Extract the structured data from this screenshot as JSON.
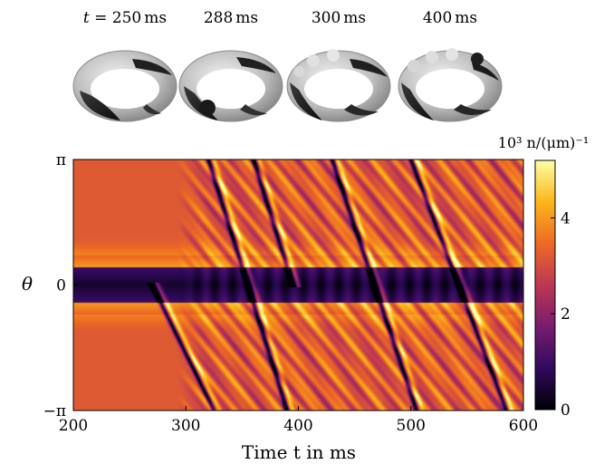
{
  "snapshots": {
    "labels": [
      {
        "prefix": "t = ",
        "value": "250",
        "unit": "ms"
      },
      {
        "prefix": "",
        "value": "288",
        "unit": "ms"
      },
      {
        "prefix": "",
        "value": "300",
        "unit": "ms"
      },
      {
        "prefix": "",
        "value": "400",
        "unit": "ms"
      }
    ]
  },
  "chart_data": {
    "type": "heatmap",
    "title": "",
    "xlabel": "Time t in ms",
    "ylabel": "θ",
    "xlim": [
      200,
      600
    ],
    "ylim": [
      -3.14159,
      3.14159
    ],
    "xticks": [
      200,
      300,
      400,
      500,
      600
    ],
    "yticks": [
      {
        "value": -3.14159,
        "label": "−π"
      },
      {
        "value": 0,
        "label": "0"
      },
      {
        "value": 3.14159,
        "label": "π"
      }
    ],
    "colorbar": {
      "label": "10³ n/(μm)⁻¹",
      "range": [
        0,
        5.2
      ],
      "ticks": [
        0,
        2,
        4
      ],
      "colormap": "inferno",
      "colors": [
        "#000004",
        "#320a5e",
        "#781c6d",
        "#bc3754",
        "#ed6925",
        "#fbb61a",
        "#fcffa4"
      ]
    },
    "baseline": {
      "background_value": 3.2,
      "band_center_value": 0.4,
      "band_edge_value": 4.0,
      "band_half_width_rad": 0.45,
      "band_edge_width_rad": 0.28
    },
    "dark_streaks": [
      {
        "t_start": 270,
        "theta_start": 0,
        "t_end": 325,
        "theta_end": -3.14159
      },
      {
        "t_start": 320,
        "theta_start": 3.14159,
        "t_end": 390,
        "theta_end": -3.14159
      },
      {
        "t_start": 360,
        "theta_start": 3.14159,
        "t_end": 395,
        "theta_end": 0
      },
      {
        "t_start": 430,
        "theta_start": 3.14159,
        "t_end": 505,
        "theta_end": -3.14159
      },
      {
        "t_start": 500,
        "theta_start": 3.14159,
        "t_end": 585,
        "theta_end": -3.14159
      }
    ],
    "onset_time": 292
  }
}
